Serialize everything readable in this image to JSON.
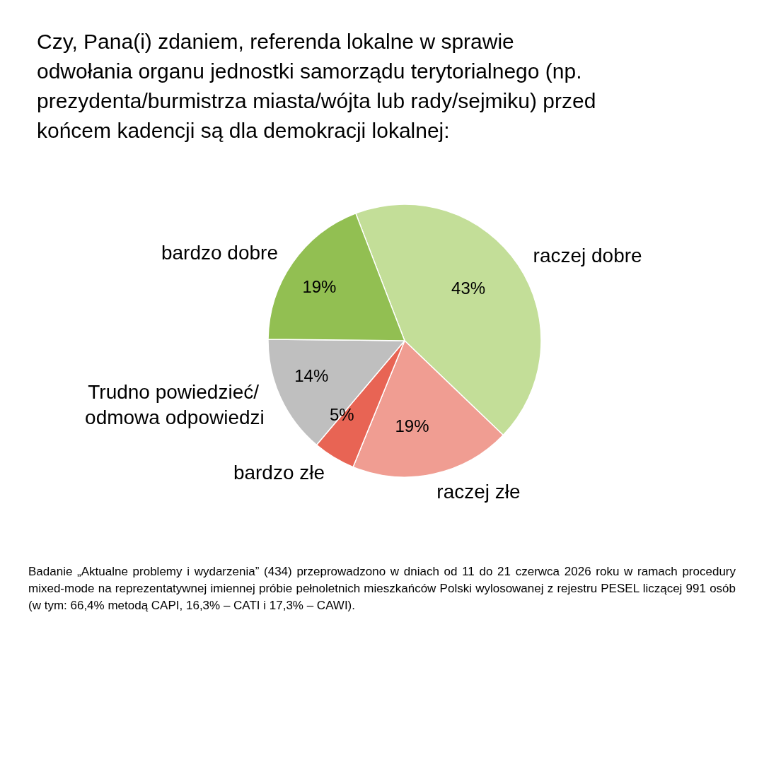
{
  "chart_data": {
    "type": "pie",
    "title": "Czy, Pana(i) zdaniem, referenda lokalne w sprawie odwołania organu jednostki samorządu terytorialnego (np. prezydenta/burmistrza miasta/wójta lub rady/sejmiku) przed końcem kadencji są dla demokracji lokalnej:",
    "categories": [
      "raczej dobre",
      "raczej złe",
      "bardzo złe",
      "Trudno powiedzieć/ odmowa odpowiedzi",
      "bardzo dobre"
    ],
    "values": [
      43,
      19,
      5,
      14,
      19
    ],
    "value_labels": [
      "43%",
      "19%",
      "5%",
      "14%",
      "19%"
    ],
    "colors": [
      "#c3de98",
      "#f09d92",
      "#e86454",
      "#bfbfbf",
      "#92bf52"
    ],
    "annotations": [
      "Badanie „Aktualne problemy i wydarzenia” (434) przeprowadzono w dniach od 11 do 21 czerwca 2026 roku w ramach procedury mixed-mode na reprezentatywnej imiennej próbie pełnoletnich mieszkańców Polski wylosowanej z rejestru PESEL liczącej  991 osób (w tym: 66,4% metodą CAPI, 16,3% – CATI i 17,3% – CAWI)."
    ],
    "legend": false
  }
}
